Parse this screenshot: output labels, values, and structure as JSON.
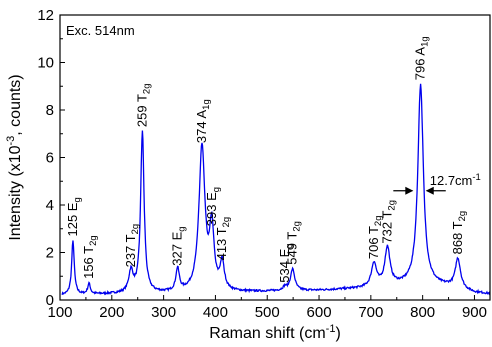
{
  "chart_data": {
    "type": "line",
    "title": "",
    "annotation_top_left": "Exc. 514nm",
    "xlabel": {
      "main": "Raman shift (cm",
      "sup": "-1",
      "tail": ")"
    },
    "ylabel": {
      "main": "Intensity (x10",
      "sup": "-3",
      "tail": ", counts)"
    },
    "xlim": [
      100,
      930
    ],
    "ylim": [
      0,
      12
    ],
    "x_ticks": [
      100,
      200,
      300,
      400,
      500,
      600,
      700,
      800,
      900
    ],
    "y_ticks": [
      0,
      2,
      4,
      6,
      8,
      10,
      12
    ],
    "grid": false,
    "series_color": "#0000ee",
    "baseline": [
      [
        100,
        0.2
      ],
      [
        200,
        0.25
      ],
      [
        300,
        0.28
      ],
      [
        400,
        0.3
      ],
      [
        500,
        0.35
      ],
      [
        600,
        0.4
      ],
      [
        650,
        0.45
      ],
      [
        700,
        0.5
      ],
      [
        750,
        0.6
      ],
      [
        800,
        0.65
      ],
      [
        850,
        0.55
      ],
      [
        900,
        0.3
      ],
      [
        930,
        0.25
      ]
    ],
    "peaks": [
      {
        "x": 125,
        "height": 2.25,
        "width": 3,
        "label": {
          "num": "125",
          "sym": "E",
          "sub": "g"
        }
      },
      {
        "x": 156,
        "height": 0.45,
        "width": 3,
        "label": {
          "num": "156",
          "sym": "T",
          "sub": "2g"
        }
      },
      {
        "x": 237,
        "height": 0.9,
        "width": 5,
        "label": {
          "num": "237",
          "sym": "T",
          "sub": "2g"
        }
      },
      {
        "x": 259,
        "height": 6.8,
        "width": 4,
        "label": {
          "num": "259",
          "sym": "T",
          "sub": "2g"
        }
      },
      {
        "x": 327,
        "height": 0.95,
        "width": 4,
        "label": {
          "num": "327",
          "sym": "E",
          "sub": "g"
        }
      },
      {
        "x": 374,
        "height": 6.1,
        "width": 7,
        "label": {
          "num": "374",
          "sym": "A",
          "sub": "1g"
        }
      },
      {
        "x": 393,
        "height": 2.6,
        "width": 5,
        "label": {
          "num": "393",
          "sym": "E",
          "sub": "g"
        }
      },
      {
        "x": 413,
        "height": 1.15,
        "width": 5,
        "label": {
          "num": "413",
          "sym": "T",
          "sub": "2g"
        }
      },
      {
        "x": 534,
        "height": 0.15,
        "width": 5,
        "label": {
          "num": "534",
          "sym": "E",
          "sub": "g"
        }
      },
      {
        "x": 549,
        "height": 0.9,
        "width": 5,
        "label": {
          "num": "549",
          "sym": "T",
          "sub": "2g"
        }
      },
      {
        "x": 706,
        "height": 1.0,
        "width": 6,
        "label": {
          "num": "706",
          "sym": "T",
          "sub": "2g"
        }
      },
      {
        "x": 732,
        "height": 1.6,
        "width": 6,
        "label": {
          "num": "732",
          "sym": "T",
          "sub": "2g"
        }
      },
      {
        "x": 796,
        "height": 8.4,
        "width": 6.35,
        "label": {
          "num": "796",
          "sym": "A",
          "sub": "1g"
        }
      },
      {
        "x": 868,
        "height": 1.25,
        "width": 6,
        "label": {
          "num": "868",
          "sym": "T",
          "sub": "2g"
        }
      }
    ],
    "fwhm_annotation": {
      "text": "12.7cm",
      "sup": "-1",
      "x_left": 782,
      "x_right": 806,
      "y": 4.6
    }
  }
}
